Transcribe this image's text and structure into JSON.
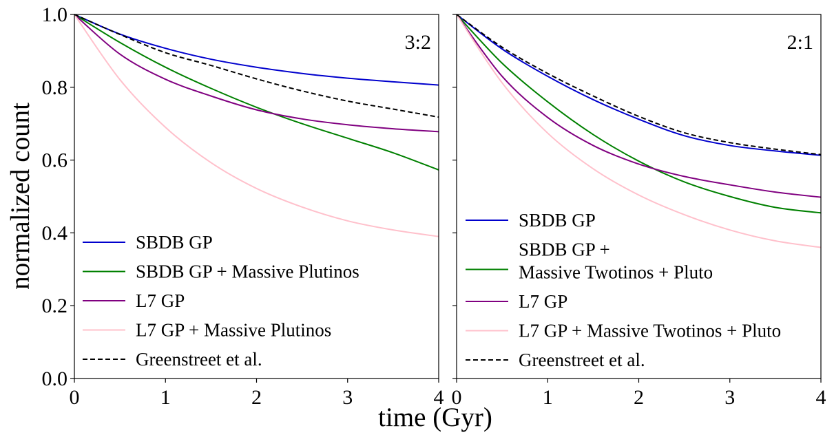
{
  "chart_data": {
    "type": "line",
    "xlabel": "time (Gyr)",
    "ylabel": "normalized count",
    "xlim": [
      0,
      4
    ],
    "ylim": [
      0.0,
      1.0
    ],
    "x_ticks": [
      "0",
      "1",
      "2",
      "3",
      "4"
    ],
    "y_ticks": [
      "0.0",
      "0.2",
      "0.4",
      "0.6",
      "0.8",
      "1.0"
    ],
    "x_tick_values": [
      0,
      1,
      2,
      3,
      4
    ],
    "y_tick_values": [
      0.0,
      0.2,
      0.4,
      0.6,
      0.8,
      1.0
    ],
    "x": [
      0,
      0.5,
      1,
      1.5,
      2,
      2.5,
      3,
      3.5,
      4
    ],
    "panels": [
      {
        "id": "left",
        "label": "3:2",
        "legend_position": "lower-left",
        "series": [
          {
            "name": "SBDB GP",
            "color": "#0000cd",
            "dash": "solid",
            "values": [
              1.0,
              0.946,
              0.907,
              0.877,
              0.855,
              0.838,
              0.825,
              0.815,
              0.806
            ]
          },
          {
            "name": "SBDB GP + Massive Plutinos",
            "color": "#008000",
            "dash": "solid",
            "values": [
              1.0,
              0.923,
              0.855,
              0.797,
              0.745,
              0.7,
              0.66,
              0.62,
              0.573
            ]
          },
          {
            "name": "L7 GP",
            "color": "#800080",
            "dash": "solid",
            "values": [
              1.0,
              0.891,
              0.822,
              0.776,
              0.738,
              0.713,
              0.697,
              0.686,
              0.678
            ]
          },
          {
            "name": "L7 GP + Massive Plutinos",
            "color": "#ffc0cb",
            "dash": "solid",
            "values": [
              1.0,
              0.821,
              0.69,
              0.593,
              0.522,
              0.471,
              0.433,
              0.408,
              0.39
            ]
          },
          {
            "name": "Greenstreet et al.",
            "color": "#000000",
            "dash": "dashed",
            "values": [
              1.0,
              0.945,
              0.895,
              0.86,
              0.823,
              0.79,
              0.762,
              0.74,
              0.718
            ]
          }
        ]
      },
      {
        "id": "right",
        "label": "2:1",
        "legend_position": "lower-left",
        "series": [
          {
            "name": "SBDB GP",
            "color": "#0000cd",
            "dash": "solid",
            "values": [
              1.0,
              0.905,
              0.83,
              0.766,
              0.712,
              0.667,
              0.64,
              0.625,
              0.613
            ]
          },
          {
            "name": "SBDB GP +\nMassive Twotinos + Pluto",
            "color": "#008000",
            "dash": "solid",
            "values": [
              1.0,
              0.866,
              0.76,
              0.67,
              0.597,
              0.54,
              0.5,
              0.47,
              0.455
            ]
          },
          {
            "name": "L7 GP",
            "color": "#800080",
            "dash": "solid",
            "values": [
              1.0,
              0.83,
              0.717,
              0.64,
              0.589,
              0.555,
              0.532,
              0.512,
              0.498
            ]
          },
          {
            "name": "L7 GP + Massive Twotinos + Pluto",
            "color": "#ffc0cb",
            "dash": "solid",
            "values": [
              1.0,
              0.812,
              0.674,
              0.576,
              0.504,
              0.45,
              0.408,
              0.378,
              0.36
            ]
          },
          {
            "name": "Greenstreet et al.",
            "color": "#000000",
            "dash": "dashed",
            "values": [
              1.0,
              0.91,
              0.838,
              0.776,
              0.72,
              0.675,
              0.648,
              0.63,
              0.615
            ]
          }
        ]
      }
    ]
  }
}
